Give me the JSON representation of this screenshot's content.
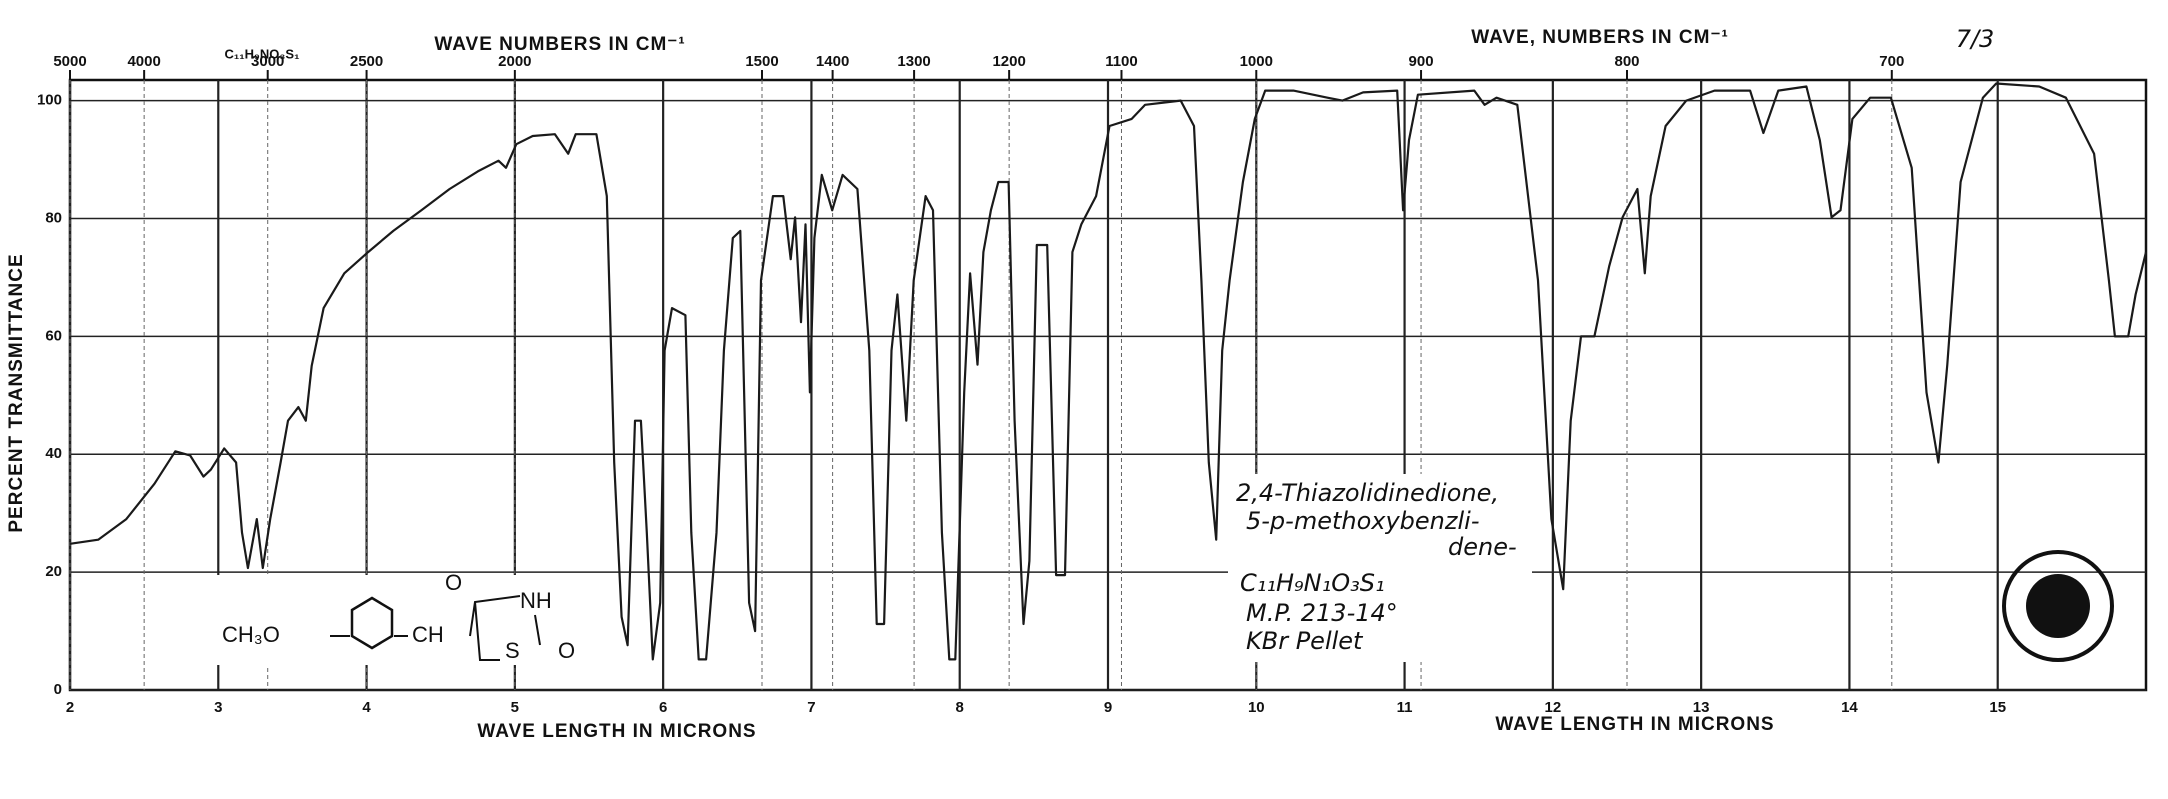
{
  "chart_data": {
    "type": "line",
    "xlabels": [
      "WAVE LENGTH IN MICRONS",
      "WAVE LENGTH IN MICRONS"
    ],
    "x2labels": [
      "WAVE NUMBERS IN CM⁻¹",
      "WAVE, NUMBERS IN CM⁻¹"
    ],
    "ylabel": "PERCENT TRANSMITTANCE",
    "page_number": "7/3",
    "formula": "C₁₁H₉NO₃S₁",
    "annotations": [
      "2,4-Thiazolidinedione,",
      "5-p-methoxybenzli-",
      "dene-",
      "C₁₁H₉N₁O₃S₁",
      "M.P. 213-14°",
      "KBr Pellet"
    ],
    "structure": [
      "CH₃O",
      "CH",
      "O",
      "NH",
      "S",
      "O"
    ],
    "xlim": [
      2,
      16
    ],
    "xticks": [
      2,
      3,
      4,
      5,
      6,
      7,
      8,
      9,
      10,
      11,
      12,
      13,
      14,
      15
    ],
    "x2ticks": [
      5000,
      4000,
      3000,
      2500,
      2000,
      1500,
      1400,
      1300,
      1200,
      1100,
      1000,
      900,
      800,
      700
    ],
    "ylim": [
      0,
      103.5
    ],
    "yticks": [
      0,
      20,
      40,
      60,
      80,
      100
    ],
    "grid": true,
    "x": [
      2,
      2.19,
      2.38,
      2.57,
      2.71,
      2.81,
      2.9,
      2.95,
      3.04,
      3.12,
      3.16,
      3.2,
      3.26,
      3.3,
      3.35,
      3.42,
      3.47,
      3.54,
      3.59,
      3.63,
      3.71,
      3.85,
      4.01,
      4.18,
      4.37,
      4.56,
      4.75,
      4.89,
      4.94,
      5.01,
      5.12,
      5.27,
      5.36,
      5.41,
      5.55,
      5.62,
      5.67,
      5.72,
      5.76,
      5.81,
      5.85,
      5.89,
      5.93,
      5.98,
      6.01,
      6.06,
      6.15,
      6.19,
      6.24,
      6.29,
      6.36,
      6.41,
      6.47,
      6.52,
      6.58,
      6.62,
      6.66,
      6.74,
      6.81,
      6.86,
      6.89,
      6.93,
      6.96,
      6.99,
      7.02,
      7.07,
      7.14,
      7.21,
      7.31,
      7.39,
      7.44,
      7.49,
      7.54,
      7.58,
      7.64,
      7.69,
      7.77,
      7.82,
      7.88,
      7.93,
      7.97,
      8.03,
      8.07,
      8.12,
      8.16,
      8.21,
      8.26,
      8.33,
      8.37,
      8.43,
      8.47,
      8.52,
      8.59,
      8.65,
      8.71,
      8.76,
      8.82,
      8.92,
      9.01,
      9.16,
      9.25,
      9.49,
      9.58,
      9.63,
      9.68,
      9.73,
      9.77,
      9.82,
      9.91,
      9.99,
      10.06,
      10.25,
      10.48,
      10.58,
      10.72,
      10.95,
      10.99,
      11.03,
      11.09,
      11.47,
      11.54,
      11.62,
      11.76,
      11.9,
      11.99,
      12.07,
      12.12,
      12.19,
      12.28,
      12.38,
      12.47,
      12.57,
      12.62,
      12.66,
      12.76,
      12.9,
      13.09,
      13.33,
      13.42,
      13.52,
      13.71,
      13.8,
      13.88,
      13.94,
      14.02,
      14.14,
      14.28,
      14.42,
      14.52,
      14.6,
      14.66,
      14.75,
      14.9,
      14.99,
      15.28,
      15.46,
      15.65,
      15.75,
      15.79,
      15.88,
      15.93,
      16
    ],
    "series": [
      {
        "color": "#1a1a1a",
        "values": [
          24.8,
          25.5,
          29,
          35,
          40.5,
          39.8,
          36.2,
          37.4,
          41,
          38.6,
          26.7,
          20.7,
          29,
          20.7,
          29,
          38.6,
          45.7,
          48,
          45.7,
          55,
          64.8,
          70.7,
          74.3,
          77.9,
          81.4,
          85,
          88,
          89.8,
          88.6,
          92.6,
          94,
          94.3,
          91,
          94.3,
          94.3,
          83.8,
          38.6,
          12.4,
          7.6,
          45.7,
          45.7,
          26.7,
          5.2,
          14.8,
          57.6,
          64.8,
          63.6,
          26.7,
          5.2,
          5.2,
          26.7,
          57.6,
          76.7,
          77.9,
          14.8,
          10,
          69.5,
          83.8,
          83.8,
          73.1,
          80.2,
          62.4,
          79,
          50.5,
          76.7,
          87.4,
          81.4,
          87.4,
          85,
          57.6,
          11.2,
          11.2,
          57.6,
          67.1,
          45.7,
          69.5,
          83.8,
          81.4,
          26.7,
          5.2,
          5.2,
          50.5,
          70.7,
          55.2,
          74.3,
          81.4,
          86.2,
          86.2,
          45.7,
          11.2,
          21.9,
          75.5,
          75.5,
          19.5,
          19.5,
          74.3,
          79,
          83.8,
          95.7,
          96.9,
          99.3,
          100,
          95.7,
          69.5,
          38.6,
          25.5,
          57.6,
          69.5,
          86.2,
          96.9,
          101.7,
          101.7,
          100.5,
          100,
          101.4,
          101.7,
          81.4,
          93.3,
          101,
          101.7,
          99.3,
          100.5,
          99.3,
          69.5,
          29,
          17.1,
          45.7,
          60,
          60,
          71.9,
          80.2,
          85,
          70.7,
          83.8,
          95.7,
          100,
          101.7,
          101.7,
          94.5,
          101.7,
          102.4,
          93.3,
          80.2,
          81.4,
          96.9,
          100.5,
          100.5,
          88.6,
          50.5,
          38.6,
          55.2,
          86.2,
          100.5,
          102.9,
          102.4,
          100.5,
          91,
          69.5,
          60,
          60,
          67.1,
          74.3
        ]
      }
    ]
  }
}
